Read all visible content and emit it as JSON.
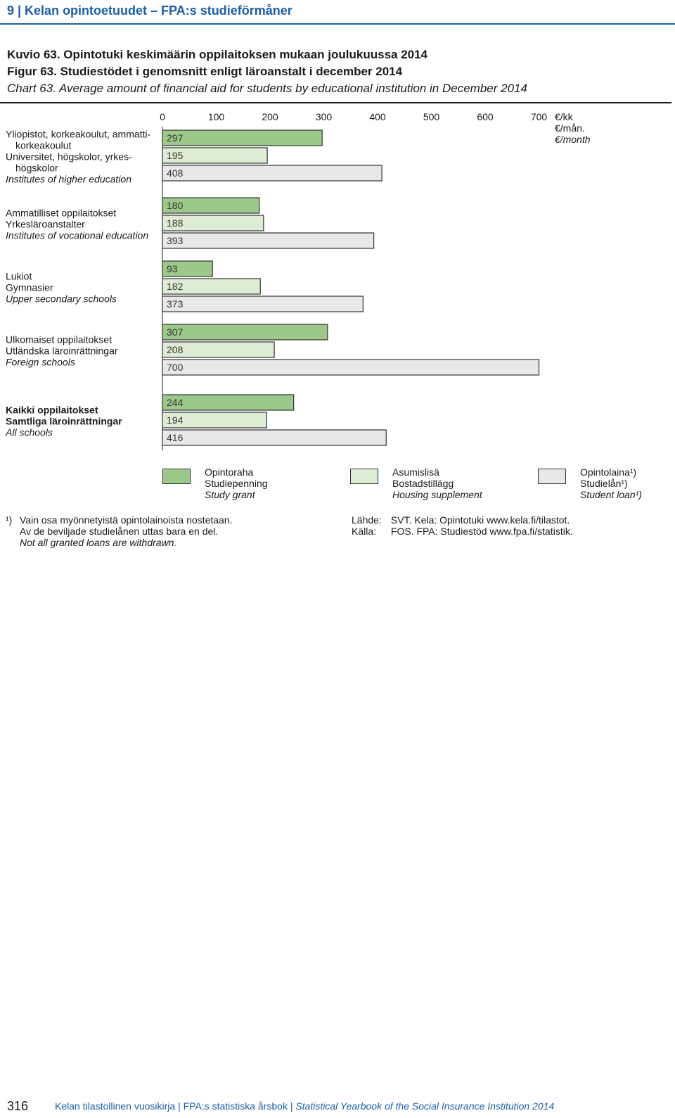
{
  "header": {
    "text": "9 | Kelan opintoetuudet – FPA:s studieförmåner"
  },
  "titles": {
    "fi": "Kuvio 63. Opintotuki keskimäärin oppilaitoksen mukaan joulukuussa 2014",
    "sv": "Figur 63. Studiestödet i genomsnitt enligt läroanstalt i december 2014",
    "en": "Chart 63. Average amount of financial aid for students by educational institution in December 2014"
  },
  "chart_data": {
    "type": "bar",
    "orientation": "horizontal",
    "axis_ticks": [
      "0",
      "100",
      "200",
      "300",
      "400",
      "500",
      "600",
      "700"
    ],
    "xlim": [
      0,
      700
    ],
    "unit_label": [
      "€/kk",
      "€/mån.",
      "€/month"
    ],
    "grid": false,
    "legend_position": "bottom",
    "categories": [
      {
        "lines": [
          "Yliopistot, korkeakoulut, ammatti-",
          "korkeakoulut",
          "Universitet, högskolor, yrkes-",
          "högskolor",
          "Institutes of higher education"
        ],
        "bold": false
      },
      {
        "lines": [
          "Ammatilliset oppilaitokset",
          "Yrkesläroanstalter",
          "Institutes of vocational education"
        ],
        "bold": false
      },
      {
        "lines": [
          "Lukiot",
          "Gymnasier",
          "Upper secondary schools"
        ],
        "bold": false
      },
      {
        "lines": [
          "Ulkomaiset oppilaitokset",
          "Utländska läroinrättningar",
          "Foreign schools"
        ],
        "bold": false
      },
      {
        "lines": [
          "Kaikki oppilaitokset",
          "Samtliga läroinrättningar",
          "All schools"
        ],
        "bold": true
      }
    ],
    "series": [
      {
        "name": "Opintoraha / Studiepenning / Study grant",
        "color": "#9cc98a",
        "values": [
          297,
          180,
          93,
          307,
          244
        ]
      },
      {
        "name": "Asumislisä / Bostadstillägg / Housing supplement",
        "color": "#ddedd5",
        "values": [
          195,
          188,
          182,
          208,
          194
        ]
      },
      {
        "name": "Opintolaina / Studielån / Student loan",
        "color": "#e8e8ea",
        "values": [
          408,
          393,
          373,
          700,
          416
        ]
      }
    ]
  },
  "legend": [
    {
      "color": "#9cc98a",
      "fi": "Opintoraha",
      "sv": "Studiepenning",
      "en": "Study grant"
    },
    {
      "color": "#ddedd5",
      "fi": "Asumislisä",
      "sv": "Bostadstillägg",
      "en": "Housing supplement"
    },
    {
      "color": "#e8e8ea",
      "fi": "Opintolaina¹)",
      "sv": "Studielån¹)",
      "en": "Student loan¹)"
    }
  ],
  "footnote": {
    "mark": "¹)",
    "fi": "Vain osa myönnetyistä opintolainoista nostetaan.",
    "sv": "Av de beviljade studielånen uttas bara en del.",
    "en": "Not all granted loans are withdrawn."
  },
  "source": {
    "fi_key": "Lähde:",
    "fi_val": "SVT. Kela: Opintotuki www.kela.fi/tilastot.",
    "sv_key": "Källa:",
    "sv_val": "FOS. FPA: Studiestöd www.fpa.fi/statistik."
  },
  "footer": {
    "page_number": "316",
    "text_a": "Kelan tilastollinen vuosikirja | FPA:s statistiska årsbok | ",
    "text_b": "Statistical Yearbook of the Social Insurance Institution 2014"
  }
}
